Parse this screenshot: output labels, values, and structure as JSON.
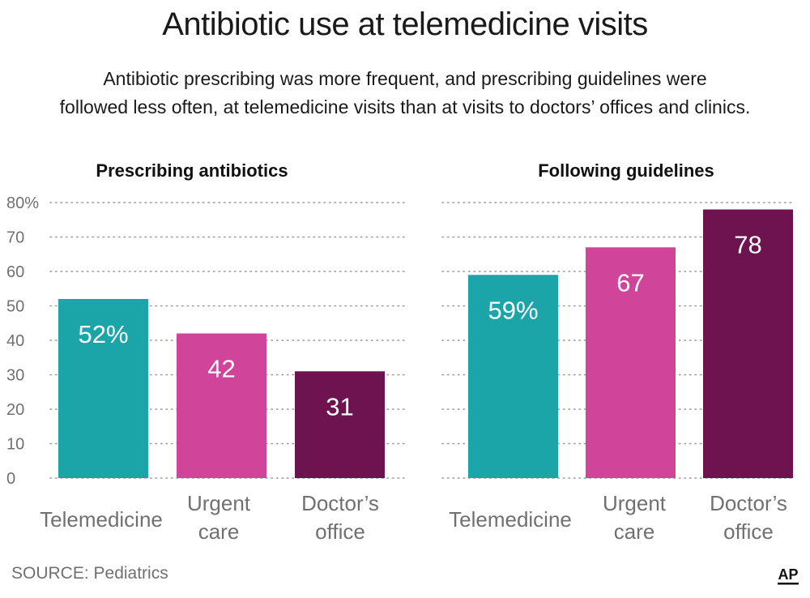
{
  "title": "Antibiotic use at telemedicine visits",
  "subtitle_lines": [
    "Antibiotic prescribing was more frequent, and prescribing guidelines were",
    "followed less often, at telemedicine visits than at visits to doctors’ offices and clinics."
  ],
  "source": "SOURCE: Pediatrics",
  "logo_text": "AP",
  "colors": {
    "telemedicine": "#1ba5a8",
    "urgent_care": "#d0449a",
    "doctors_office": "#6d1450",
    "grid": "#9a9a9a",
    "tick_text": "#707070",
    "label_text": "#ffffff"
  },
  "chart_data": [
    {
      "type": "bar",
      "title": "Prescribing antibiotics",
      "categories": [
        [
          "Telemedicine"
        ],
        [
          "Urgent",
          "care"
        ],
        [
          "Doctor’s",
          "office"
        ]
      ],
      "values": [
        52,
        42,
        31
      ],
      "value_labels": [
        "52%",
        "42",
        "31"
      ],
      "yticks": [
        "0",
        "10",
        "20",
        "30",
        "40",
        "50",
        "60",
        "70",
        "80%"
      ],
      "ylim": [
        0,
        80
      ],
      "grid": true
    },
    {
      "type": "bar",
      "title": "Following guidelines",
      "categories": [
        [
          "Telemedicine"
        ],
        [
          "Urgent",
          "care"
        ],
        [
          "Doctor’s",
          "office"
        ]
      ],
      "values": [
        59,
        67,
        78
      ],
      "value_labels": [
        "59%",
        "67",
        "78"
      ],
      "ylim": [
        0,
        80
      ],
      "grid": true
    }
  ]
}
